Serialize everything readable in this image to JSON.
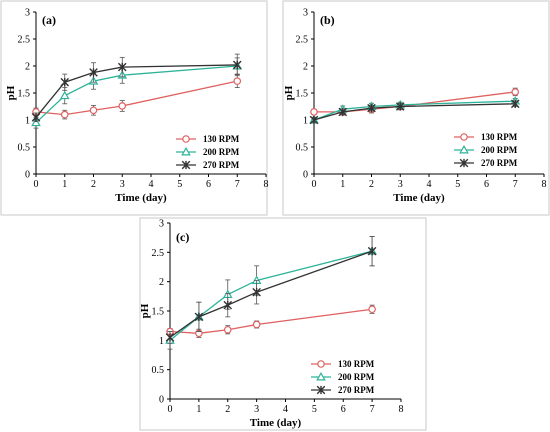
{
  "chart_data": [
    {
      "type": "line",
      "panel_label": "(a)",
      "xlabel": "Time (day)",
      "ylabel": "pH",
      "xlim": [
        0,
        8
      ],
      "ylim": [
        0,
        3
      ],
      "xticks": [
        0,
        1,
        2,
        3,
        4,
        5,
        6,
        7,
        8
      ],
      "yticks": [
        0,
        0.5,
        1,
        1.5,
        2,
        2.5,
        3
      ],
      "x": [
        0,
        1,
        2,
        3,
        7
      ],
      "legend_position": "bottom-right",
      "grid": false,
      "series": [
        {
          "name": "130 RPM",
          "color": "#e06060",
          "marker": "circle",
          "values": [
            1.15,
            1.1,
            1.18,
            1.26,
            1.72
          ],
          "errors": [
            0.07,
            0.08,
            0.09,
            0.1,
            0.12
          ]
        },
        {
          "name": "200 RPM",
          "color": "#2db39a",
          "marker": "triangle",
          "values": [
            0.95,
            1.45,
            1.72,
            1.83,
            2.0
          ],
          "errors": [
            0.1,
            0.15,
            0.15,
            0.15,
            0.15
          ]
        },
        {
          "name": "270 RPM",
          "color": "#333333",
          "marker": "star",
          "values": [
            1.05,
            1.7,
            1.88,
            1.98,
            2.02
          ],
          "errors": [
            0.08,
            0.15,
            0.18,
            0.18,
            0.2
          ]
        }
      ]
    },
    {
      "type": "line",
      "panel_label": "(b)",
      "xlabel": "Time (day)",
      "ylabel": "pH",
      "xlim": [
        0,
        8
      ],
      "ylim": [
        0,
        3
      ],
      "xticks": [
        0,
        1,
        2,
        3,
        4,
        5,
        6,
        7,
        8
      ],
      "yticks": [
        0,
        0.5,
        1,
        1.5,
        2,
        2.5,
        3
      ],
      "x": [
        0,
        1,
        2,
        3,
        7
      ],
      "legend_position": "bottom-right",
      "grid": false,
      "series": [
        {
          "name": "130 RPM",
          "color": "#e06060",
          "marker": "circle",
          "values": [
            1.15,
            1.15,
            1.2,
            1.25,
            1.52
          ],
          "errors": [
            0.05,
            0.06,
            0.07,
            0.06,
            0.07
          ]
        },
        {
          "name": "200 RPM",
          "color": "#2db39a",
          "marker": "triangle",
          "values": [
            1.0,
            1.2,
            1.25,
            1.28,
            1.35
          ],
          "errors": [
            0.05,
            0.06,
            0.06,
            0.05,
            0.05
          ]
        },
        {
          "name": "270 RPM",
          "color": "#333333",
          "marker": "star",
          "values": [
            1.0,
            1.15,
            1.22,
            1.25,
            1.3
          ],
          "errors": [
            0.05,
            0.05,
            0.05,
            0.05,
            0.05
          ]
        }
      ]
    },
    {
      "type": "line",
      "panel_label": "(c)",
      "xlabel": "Time (day)",
      "ylabel": "pH",
      "xlim": [
        0,
        8
      ],
      "ylim": [
        0,
        3
      ],
      "xticks": [
        0,
        1,
        2,
        3,
        4,
        5,
        6,
        7,
        8
      ],
      "yticks": [
        0,
        0.5,
        1,
        1.5,
        2,
        2.5,
        3
      ],
      "x": [
        0,
        1,
        2,
        3,
        7
      ],
      "legend_position": "bottom-right",
      "grid": false,
      "series": [
        {
          "name": "130 RPM",
          "color": "#e06060",
          "marker": "circle",
          "values": [
            1.15,
            1.12,
            1.18,
            1.27,
            1.53
          ],
          "errors": [
            0.05,
            0.07,
            0.07,
            0.06,
            0.07
          ]
        },
        {
          "name": "200 RPM",
          "color": "#2db39a",
          "marker": "triangle",
          "values": [
            1.0,
            1.4,
            1.78,
            2.02,
            2.52
          ],
          "errors": [
            0.15,
            0.25,
            0.25,
            0.25,
            0.25
          ]
        },
        {
          "name": "270 RPM",
          "color": "#333333",
          "marker": "star",
          "values": [
            1.05,
            1.4,
            1.6,
            1.82,
            2.52
          ],
          "errors": [
            0.1,
            0.25,
            0.2,
            0.2,
            0.25
          ]
        }
      ]
    }
  ]
}
